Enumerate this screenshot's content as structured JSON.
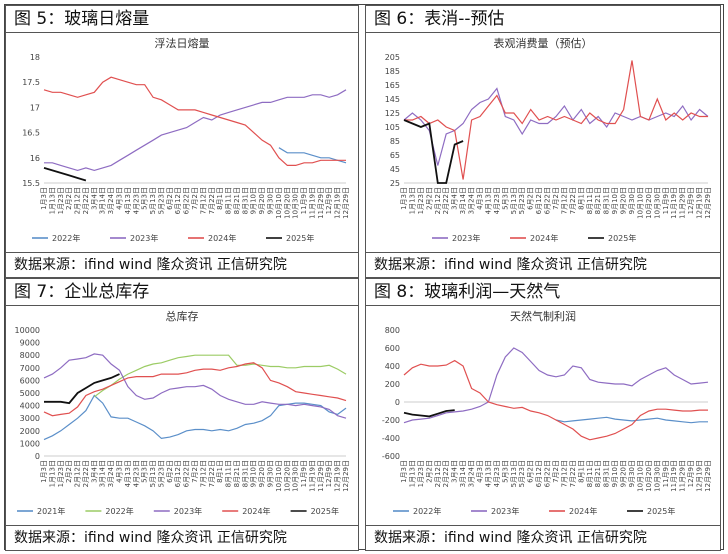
{
  "source_text": "数据来源：ifind wind  隆众资讯  正信研究院",
  "panels": [
    {
      "title": "图 5：玻璃日熔量"
    },
    {
      "title": "图 6：表消--预估"
    },
    {
      "title": "图 7：企业总库存"
    },
    {
      "title": "图 8：玻璃利润—天然气"
    }
  ],
  "chart_data": [
    {
      "type": "line",
      "title": "浮法日熔量",
      "ylim": [
        15.5,
        18
      ],
      "yticks": [
        15.5,
        16,
        16.5,
        17,
        17.5,
        18
      ],
      "categories": [
        "1月3日",
        "1月13日",
        "1月23日",
        "2月2日",
        "2月12日",
        "2月22日",
        "3月4日",
        "3月14日",
        "3月24日",
        "4月3日",
        "4月13日",
        "4月23日",
        "5月3日",
        "5月13日",
        "5月23日",
        "6月2日",
        "6月12日",
        "6月22日",
        "7月2日",
        "7月12日",
        "7月22日",
        "8月1日",
        "8月11日",
        "8月21日",
        "8月31日",
        "9月10日",
        "9月20日",
        "9月30日",
        "10月10日",
        "10月20日",
        "10月30日",
        "11月9日",
        "11月19日",
        "11月29日",
        "12月9日",
        "12月19日",
        "12月29日"
      ],
      "x_tick_labels": [
        "1月3日",
        "1月13日",
        "1月23日",
        "2月2日",
        "2月12日",
        "2月22日",
        "3月4日",
        "3月14日",
        "3月24日",
        "4月3日",
        "4月13日",
        "4月23日",
        "5月3日",
        "5月13日",
        "5月23日",
        "6月2日",
        "6月12日",
        "6月22日",
        "7月2日",
        "7月12日",
        "7月22日",
        "8月1日",
        "8月11日",
        "8月21日",
        "8月31日",
        "9月10日",
        "9月20日",
        "9月30日",
        "10月10日",
        "10月20日",
        "10月30日",
        "11月9日",
        "11月19日",
        "11月29日",
        "12月9日",
        "12月19日",
        "12月29日"
      ],
      "series": [
        {
          "name": "2022年",
          "color": "#5b8fc9",
          "values": [
            null,
            null,
            null,
            null,
            null,
            null,
            null,
            null,
            null,
            null,
            null,
            null,
            null,
            null,
            null,
            null,
            null,
            null,
            null,
            null,
            null,
            null,
            null,
            null,
            null,
            null,
            null,
            null,
            16.2,
            16.1,
            16.1,
            16.1,
            16.05,
            16.0,
            16.0,
            15.95,
            15.9
          ]
        },
        {
          "name": "2023年",
          "color": "#8e6cc2",
          "values": [
            15.9,
            15.9,
            15.85,
            15.8,
            15.75,
            15.8,
            15.75,
            15.8,
            15.85,
            15.95,
            16.05,
            16.15,
            16.25,
            16.35,
            16.45,
            16.5,
            16.55,
            16.6,
            16.7,
            16.8,
            16.75,
            16.85,
            16.9,
            16.95,
            17.0,
            17.05,
            17.1,
            17.1,
            17.15,
            17.2,
            17.2,
            17.2,
            17.25,
            17.25,
            17.2,
            17.25,
            17.35
          ]
        },
        {
          "name": "2024年",
          "color": "#e05050",
          "values": [
            17.35,
            17.3,
            17.3,
            17.25,
            17.2,
            17.25,
            17.3,
            17.5,
            17.6,
            17.55,
            17.5,
            17.45,
            17.45,
            17.2,
            17.15,
            17.05,
            16.95,
            16.95,
            16.95,
            16.9,
            16.85,
            16.8,
            16.75,
            16.7,
            16.65,
            16.5,
            16.35,
            16.25,
            16.0,
            15.85,
            15.85,
            15.9,
            15.9,
            15.95,
            15.95,
            15.95,
            15.95
          ]
        },
        {
          "name": "2025年",
          "color": "#111111",
          "values": [
            15.8,
            15.75,
            15.7,
            15.65,
            15.6,
            15.55,
            null,
            null,
            null,
            null,
            null,
            null,
            null,
            null,
            null,
            null,
            null,
            null,
            null,
            null,
            null,
            null,
            null,
            null,
            null,
            null,
            null,
            null,
            null,
            null,
            null,
            null,
            null,
            null,
            null,
            null,
            null
          ]
        }
      ]
    },
    {
      "type": "line",
      "title": "表观消费量（预估）",
      "ylim": [
        25,
        205
      ],
      "yticks": [
        25,
        45,
        65,
        85,
        105,
        125,
        145,
        165,
        185,
        205
      ],
      "categories": [
        "1月3日",
        "1月13日",
        "1月23日",
        "2月2日",
        "2月12日",
        "2月22日",
        "3月4日",
        "3月14日",
        "3月24日",
        "4月3日",
        "4月13日",
        "4月23日",
        "5月3日",
        "5月13日",
        "5月23日",
        "6月2日",
        "6月12日",
        "6月22日",
        "7月2日",
        "7月12日",
        "7月22日",
        "8月1日",
        "8月11日",
        "8月21日",
        "8月31日",
        "9月10日",
        "9月20日",
        "9月30日",
        "10月10日",
        "10月20日",
        "10月30日",
        "11月9日",
        "11月19日",
        "11月29日",
        "12月9日",
        "12月19日",
        "12月29日"
      ],
      "x_tick_labels": [
        "1月3日",
        "1月13日",
        "1月23日",
        "2月2日",
        "2月12日",
        "2月22日",
        "3月4日",
        "3月14日",
        "3月24日",
        "4月3日",
        "4月13日",
        "4月23日",
        "5月3日",
        "5月13日",
        "5月23日",
        "6月2日",
        "6月12日",
        "6月22日",
        "7月2日",
        "7月12日",
        "7月22日",
        "8月1日",
        "8月11日",
        "8月21日",
        "8月31日",
        "9月10日",
        "9月20日",
        "9月30日",
        "10月10日",
        "10月20日",
        "10月30日",
        "11月9日",
        "11月19日",
        "11月29日",
        "12月9日",
        "12月19日",
        "12月29日"
      ],
      "series": [
        {
          "name": "2023年",
          "color": "#8e6cc2",
          "values": [
            115,
            125,
            115,
            100,
            50,
            95,
            100,
            110,
            130,
            140,
            145,
            160,
            120,
            115,
            95,
            115,
            110,
            110,
            120,
            135,
            115,
            130,
            110,
            120,
            105,
            125,
            120,
            115,
            120,
            115,
            120,
            125,
            120,
            135,
            115,
            130,
            120
          ]
        },
        {
          "name": "2024年",
          "color": "#e05050",
          "values": [
            115,
            115,
            120,
            110,
            115,
            105,
            100,
            30,
            115,
            120,
            135,
            150,
            125,
            125,
            110,
            130,
            115,
            120,
            115,
            120,
            115,
            110,
            125,
            115,
            110,
            110,
            130,
            200,
            120,
            115,
            145,
            115,
            125,
            115,
            125,
            120,
            120
          ]
        },
        {
          "name": "2025年",
          "color": "#111111",
          "values": [
            115,
            110,
            105,
            110,
            25,
            25,
            80,
            85,
            null,
            null,
            null,
            null,
            null,
            null,
            null,
            null,
            null,
            null,
            null,
            null,
            null,
            null,
            null,
            null,
            null,
            null,
            null,
            null,
            null,
            null,
            null,
            null,
            null,
            null,
            null,
            null,
            null
          ]
        }
      ]
    },
    {
      "type": "line",
      "title": "总库存",
      "ylim": [
        0,
        10000
      ],
      "yticks": [
        0,
        1000,
        2000,
        3000,
        4000,
        5000,
        6000,
        7000,
        8000,
        9000,
        10000
      ],
      "categories": [
        "1月3日",
        "1月13日",
        "1月23日",
        "2月2日",
        "2月12日",
        "2月22日",
        "3月4日",
        "3月14日",
        "3月24日",
        "4月3日",
        "4月13日",
        "4月23日",
        "5月3日",
        "5月13日",
        "5月23日",
        "6月2日",
        "6月12日",
        "6月22日",
        "7月2日",
        "7月12日",
        "7月22日",
        "8月1日",
        "8月11日",
        "8月21日",
        "8月31日",
        "9月10日",
        "9月20日",
        "9月30日",
        "10月10日",
        "10月20日",
        "10月30日",
        "11月9日",
        "11月19日",
        "11月29日",
        "12月9日",
        "12月19日",
        "12月29日"
      ],
      "x_tick_labels": [
        "1月3日",
        "1月13日",
        "1月23日",
        "2月2日",
        "2月12日",
        "2月22日",
        "3月4日",
        "3月14日",
        "3月24日",
        "4月3日",
        "4月13日",
        "4月23日",
        "5月3日",
        "5月13日",
        "5月23日",
        "6月2日",
        "6月12日",
        "6月22日",
        "7月2日",
        "7月12日",
        "7月22日",
        "8月1日",
        "8月11日",
        "8月21日",
        "8月31日",
        "9月10日",
        "9月20日",
        "9月30日",
        "10月10日",
        "10月20日",
        "10月30日",
        "11月9日",
        "11月19日",
        "11月29日",
        "12月9日",
        "12月19日",
        "12月29日"
      ],
      "series": [
        {
          "name": "2021年",
          "color": "#5b8fc9",
          "values": [
            1300,
            1600,
            2000,
            2500,
            3000,
            3600,
            4800,
            4200,
            3100,
            3000,
            3000,
            2700,
            2400,
            2000,
            1400,
            1500,
            1700,
            2000,
            2100,
            2100,
            2000,
            2100,
            2000,
            2200,
            2500,
            2600,
            2800,
            3200,
            4000,
            4100,
            4200,
            4200,
            4100,
            4000,
            3500,
            3300,
            3800
          ]
        },
        {
          "name": "2022年",
          "color": "#9ccc65",
          "values": [
            null,
            null,
            null,
            null,
            null,
            null,
            4700,
            5200,
            5600,
            6100,
            6500,
            6800,
            7100,
            7300,
            7400,
            7600,
            7800,
            7900,
            8000,
            8000,
            8000,
            8000,
            8000,
            7200,
            7200,
            7300,
            7200,
            7100,
            7100,
            7000,
            7000,
            7100,
            7100,
            7100,
            7200,
            6900,
            6500
          ]
        },
        {
          "name": "2023年",
          "color": "#8e6cc2",
          "values": [
            6200,
            6500,
            7000,
            7600,
            7700,
            7800,
            8100,
            8000,
            7300,
            6800,
            5500,
            4800,
            4500,
            4600,
            5000,
            5300,
            5400,
            5500,
            5500,
            5600,
            5300,
            4800,
            4500,
            4300,
            4100,
            4100,
            4300,
            4200,
            4100,
            4100,
            4000,
            4100,
            4000,
            3900,
            3700,
            3200,
            3000
          ]
        },
        {
          "name": "2024年",
          "color": "#e05050",
          "values": [
            3500,
            3200,
            3300,
            3400,
            3900,
            4800,
            5100,
            5300,
            5600,
            5900,
            6200,
            6300,
            6300,
            6300,
            6500,
            6500,
            6500,
            6600,
            6800,
            6900,
            6900,
            6800,
            7000,
            7100,
            7300,
            7400,
            7000,
            6000,
            5800,
            5500,
            5100,
            5000,
            4900,
            4800,
            4700,
            4600,
            4400
          ]
        },
        {
          "name": "2025年",
          "color": "#111111",
          "values": [
            4300,
            4300,
            4300,
            4200,
            5000,
            5400,
            5800,
            6000,
            6200,
            6500,
            null,
            null,
            null,
            null,
            null,
            null,
            null,
            null,
            null,
            null,
            null,
            null,
            null,
            null,
            null,
            null,
            null,
            null,
            null,
            null,
            null,
            null,
            null,
            null,
            null,
            null,
            null
          ]
        }
      ]
    },
    {
      "type": "line",
      "title": "天然气制利润",
      "ylim": [
        -600,
        800
      ],
      "yticks": [
        -600,
        -400,
        -200,
        0,
        200,
        400,
        600,
        800
      ],
      "categories": [
        "1月3日",
        "1月13日",
        "1月23日",
        "2月2日",
        "2月12日",
        "2月22日",
        "3月4日",
        "3月14日",
        "3月24日",
        "4月3日",
        "4月13日",
        "4月23日",
        "5月3日",
        "5月13日",
        "5月23日",
        "6月2日",
        "6月12日",
        "6月22日",
        "7月2日",
        "7月12日",
        "7月22日",
        "8月1日",
        "8月11日",
        "8月21日",
        "8月31日",
        "9月10日",
        "9月20日",
        "9月30日",
        "10月10日",
        "10月20日",
        "10月30日",
        "11月9日",
        "11月19日",
        "11月29日",
        "12月9日",
        "12月19日",
        "12月29日"
      ],
      "x_tick_labels": [
        "1月3日",
        "1月13日",
        "1月23日",
        "2月2日",
        "2月12日",
        "2月22日",
        "3月4日",
        "3月14日",
        "3月24日",
        "4月3日",
        "4月13日",
        "4月23日",
        "5月3日",
        "5月13日",
        "5月23日",
        "6月2日",
        "6月12日",
        "6月22日",
        "7月2日",
        "7月12日",
        "7月22日",
        "8月1日",
        "8月11日",
        "8月21日",
        "8月31日",
        "9月10日",
        "9月20日",
        "9月30日",
        "10月10日",
        "10月20日",
        "10月30日",
        "11月9日",
        "11月19日",
        "11月29日",
        "12月9日",
        "12月19日",
        "12月29日"
      ],
      "series": [
        {
          "name": "2022年",
          "color": "#5b8fc9",
          "values": [
            null,
            null,
            null,
            null,
            null,
            null,
            null,
            null,
            null,
            null,
            null,
            null,
            null,
            null,
            null,
            null,
            null,
            null,
            -200,
            -220,
            -210,
            -200,
            -190,
            -180,
            -170,
            -190,
            -200,
            -210,
            -200,
            -190,
            -180,
            -200,
            -210,
            -220,
            -230,
            -220,
            -220
          ]
        },
        {
          "name": "2023年",
          "color": "#8e6cc2",
          "values": [
            -230,
            -200,
            -190,
            -180,
            -150,
            -120,
            -110,
            -100,
            -80,
            -50,
            0,
            300,
            500,
            600,
            550,
            450,
            350,
            300,
            280,
            300,
            400,
            380,
            250,
            220,
            210,
            200,
            200,
            180,
            250,
            300,
            350,
            380,
            300,
            250,
            200,
            210,
            220
          ]
        },
        {
          "name": "2024年",
          "color": "#e05050",
          "values": [
            300,
            380,
            420,
            400,
            400,
            410,
            460,
            400,
            150,
            100,
            0,
            -30,
            -50,
            -70,
            -60,
            -100,
            -120,
            -150,
            -200,
            -250,
            -300,
            -380,
            -420,
            -400,
            -380,
            -350,
            -300,
            -250,
            -150,
            -100,
            -80,
            -80,
            -90,
            -100,
            -100,
            -90,
            -90
          ]
        },
        {
          "name": "2025年",
          "color": "#111111",
          "values": [
            -120,
            -140,
            -150,
            -160,
            -130,
            -100,
            -90,
            null,
            null,
            null,
            null,
            null,
            null,
            null,
            null,
            null,
            null,
            null,
            null,
            null,
            null,
            null,
            null,
            null,
            null,
            null,
            null,
            null,
            null,
            null,
            null,
            null,
            null,
            null,
            null,
            null,
            null
          ]
        }
      ]
    }
  ]
}
